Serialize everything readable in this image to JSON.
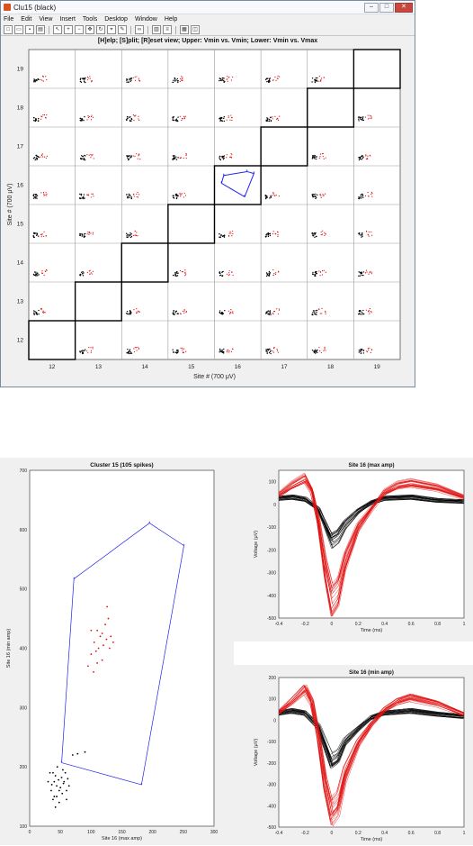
{
  "window": {
    "title": "Clu15 (black)",
    "minimize": "–",
    "maximize": "□",
    "close": "✕"
  },
  "menu": [
    "File",
    "Edit",
    "View",
    "Insert",
    "Tools",
    "Desktop",
    "Window",
    "Help"
  ],
  "toolbar": [
    "new-icon",
    "open-icon",
    "save-icon",
    "print-icon",
    "pointer-icon",
    "zoom-in-icon",
    "zoom-out-icon",
    "pan-icon",
    "rotate-icon",
    "datacursor-icon",
    "brush-icon",
    "link-icon",
    "colorbar-icon",
    "legend-icon",
    "grid-icon",
    "dock-icon"
  ],
  "figure_title": "[H]elp; [S]plit; [R]eset view; Upper: Vmin vs. Vmin; Lower: Vmin vs. Vmax",
  "colors": {
    "cluster_black": "#000000",
    "cluster_red": "#e01010",
    "polygon": "#2222ee",
    "grid": "#9a9a9a",
    "bg": "#f0f0f0"
  },
  "chart_data": [
    {
      "type": "scatter",
      "title": "[H]elp; [S]plit; [R]eset view; Upper: Vmin vs. Vmin; Lower: Vmin vs. Vmax",
      "xlabel": "Site # (700 μV)",
      "ylabel": "Site # (700 μV)",
      "xticks": [
        12,
        13,
        14,
        15,
        16,
        17,
        18,
        19
      ],
      "yticks": [
        12,
        13,
        14,
        15,
        16,
        17,
        18,
        19
      ],
      "xlim": [
        11.5,
        19.5
      ],
      "ylim": [
        11.5,
        19.5
      ],
      "highlight_diagonal": true,
      "polygon_cell": [
        16,
        16
      ],
      "grid": true
    },
    {
      "type": "scatter",
      "title": "Cluster 15 (105 spikes)",
      "xlabel": "Site 16 (max amp)",
      "ylabel": "Site 16 (min amp)",
      "xlim": [
        0,
        300
      ],
      "ylim": [
        100,
        700
      ],
      "xticks": [
        0,
        50,
        100,
        150,
        200,
        250,
        300
      ],
      "yticks": [
        100,
        200,
        300,
        400,
        500,
        600,
        700
      ],
      "polygon": [
        [
          52,
          207
        ],
        [
          72,
          517
        ],
        [
          195,
          611
        ],
        [
          251,
          573
        ],
        [
          182,
          170
        ],
        [
          52,
          207
        ]
      ],
      "series": [
        {
          "color": "black",
          "points": [
            [
              30,
              175
            ],
            [
              35,
              160
            ],
            [
              38,
              190
            ],
            [
              40,
              150
            ],
            [
              42,
              185
            ],
            [
              44,
              168
            ],
            [
              45,
              200
            ],
            [
              47,
              178
            ],
            [
              48,
              140
            ],
            [
              50,
              165
            ],
            [
              52,
              182
            ],
            [
              53,
              155
            ],
            [
              55,
              172
            ],
            [
              58,
              190
            ],
            [
              60,
              160
            ],
            [
              40,
              175
            ],
            [
              62,
              180
            ],
            [
              36,
              170
            ],
            [
              44,
              150
            ],
            [
              54,
              195
            ],
            [
              60,
              145
            ],
            [
              70,
              220
            ],
            [
              78,
              222
            ],
            [
              90,
              225
            ],
            [
              48,
              160
            ],
            [
              56,
              175
            ],
            [
              64,
              168
            ],
            [
              38,
              145
            ],
            [
              42,
              132
            ],
            [
              33,
              190
            ]
          ]
        },
        {
          "color": "red",
          "points": [
            [
              95,
              370
            ],
            [
              100,
              390
            ],
            [
              105,
              410
            ],
            [
              108,
              395
            ],
            [
              110,
              430
            ],
            [
              112,
              400
            ],
            [
              115,
              420
            ],
            [
              118,
              380
            ],
            [
              120,
              405
            ],
            [
              123,
              440
            ],
            [
              125,
              415
            ],
            [
              128,
              450
            ],
            [
              130,
              400
            ],
            [
              110,
              375
            ],
            [
              132,
              420
            ],
            [
              118,
              425
            ],
            [
              104,
              360
            ],
            [
              136,
              410
            ],
            [
              126,
              470
            ],
            [
              100,
              430
            ]
          ]
        }
      ]
    },
    {
      "type": "line",
      "title": "Site 16 (max amp)",
      "xlabel": "Time (ms)",
      "ylabel": "Voltage (μV)",
      "xlim": [
        -0.4,
        1
      ],
      "ylim": [
        -500,
        150
      ],
      "xticks": [
        -0.4,
        -0.2,
        0,
        0.2,
        0.4,
        0.6,
        0.8,
        1
      ],
      "yticks": [
        -500,
        -400,
        -300,
        -200,
        -100,
        0,
        100
      ],
      "series": [
        {
          "name": "black",
          "t": [
            -0.4,
            -0.3,
            -0.2,
            -0.1,
            -0.05,
            0,
            0.05,
            0.1,
            0.2,
            0.3,
            0.4,
            0.6,
            0.8,
            1
          ],
          "v": [
            30,
            35,
            25,
            -20,
            -90,
            -160,
            -140,
            -90,
            -30,
            10,
            30,
            35,
            20,
            15
          ]
        },
        {
          "name": "red",
          "t": [
            -0.4,
            -0.3,
            -0.2,
            -0.15,
            -0.1,
            -0.05,
            0,
            0.05,
            0.1,
            0.2,
            0.3,
            0.4,
            0.5,
            0.6,
            0.8,
            1
          ],
          "v": [
            40,
            80,
            110,
            60,
            -80,
            -280,
            -420,
            -380,
            -250,
            -100,
            -20,
            50,
            80,
            90,
            70,
            30
          ]
        }
      ]
    },
    {
      "type": "line",
      "title": "Site 16 (min amp)",
      "xlabel": "Time (ms)",
      "ylabel": "Voltage (μV)",
      "xlim": [
        -0.4,
        1
      ],
      "ylim": [
        -500,
        200
      ],
      "xticks": [
        -0.4,
        -0.2,
        0,
        0.2,
        0.4,
        0.6,
        0.8,
        1
      ],
      "yticks": [
        -500,
        -400,
        -300,
        -200,
        -100,
        0,
        100,
        200
      ],
      "series": [
        {
          "name": "black",
          "t": [
            -0.4,
            -0.3,
            -0.2,
            -0.1,
            -0.05,
            0,
            0.05,
            0.1,
            0.2,
            0.3,
            0.4,
            0.6,
            0.8,
            1
          ],
          "v": [
            30,
            40,
            30,
            -30,
            -110,
            -190,
            -170,
            -100,
            -40,
            10,
            30,
            40,
            25,
            15
          ]
        },
        {
          "name": "red",
          "t": [
            -0.4,
            -0.3,
            -0.2,
            -0.15,
            -0.1,
            -0.05,
            0,
            0.05,
            0.1,
            0.2,
            0.3,
            0.4,
            0.5,
            0.6,
            0.8,
            1
          ],
          "v": [
            40,
            90,
            150,
            90,
            -80,
            -300,
            -440,
            -400,
            -260,
            -110,
            -20,
            50,
            90,
            110,
            80,
            30
          ]
        }
      ]
    }
  ]
}
